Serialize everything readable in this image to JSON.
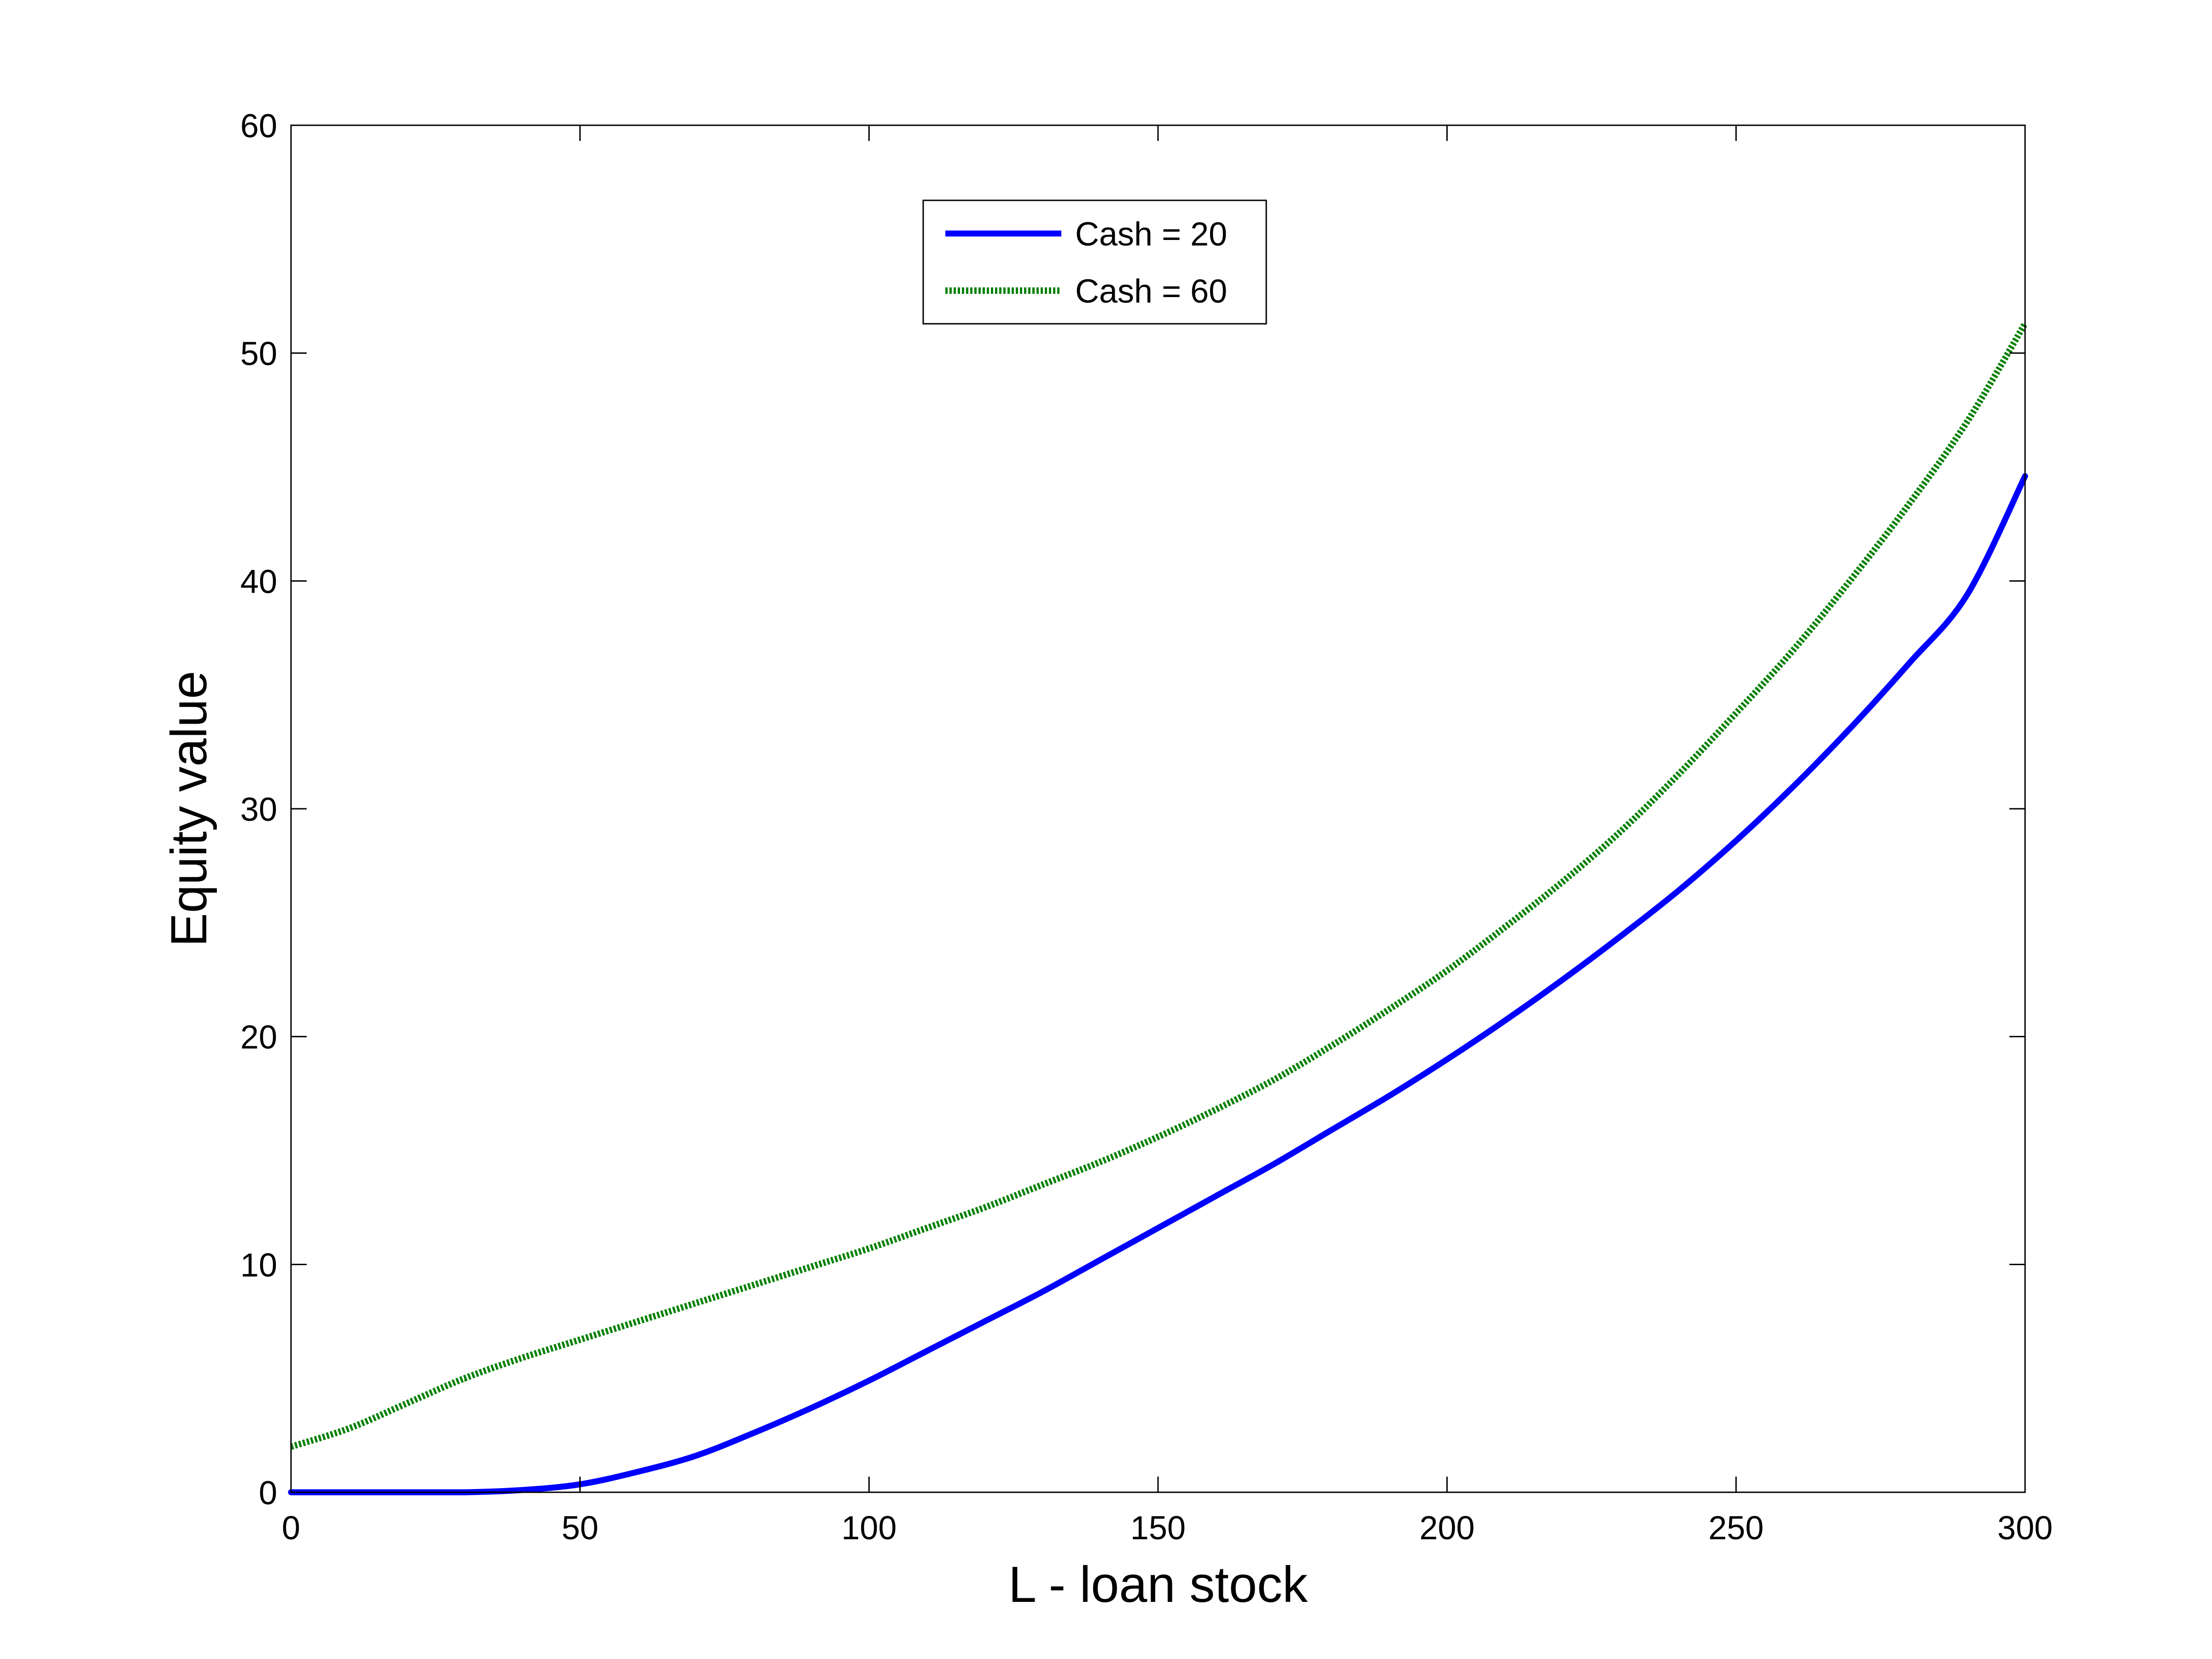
{
  "chart_data": {
    "type": "line",
    "title": "",
    "xlabel": "L - loan stock",
    "ylabel": "Equity value",
    "xlim": [
      0,
      300
    ],
    "ylim": [
      0,
      60
    ],
    "xticks": [
      0,
      50,
      100,
      150,
      200,
      250,
      300
    ],
    "yticks": [
      0,
      10,
      20,
      30,
      40,
      50,
      60
    ],
    "grid": false,
    "legend_position": "top-center",
    "series": [
      {
        "name": "Cash = 20",
        "color": "#0000ff",
        "style": "solid",
        "x": [
          0,
          10,
          20,
          30,
          40,
          50,
          60,
          70,
          80,
          90,
          100,
          110,
          120,
          130,
          140,
          150,
          160,
          170,
          180,
          190,
          200,
          210,
          220,
          230,
          240,
          250,
          260,
          270,
          280,
          290,
          300
        ],
        "y": [
          0,
          0,
          0,
          0,
          0.1,
          0.35,
          0.9,
          1.6,
          2.6,
          3.7,
          4.9,
          6.2,
          7.5,
          8.8,
          10.2,
          11.6,
          13.0,
          14.4,
          15.9,
          17.4,
          19.0,
          20.7,
          22.5,
          24.4,
          26.4,
          28.6,
          31.0,
          33.6,
          36.4,
          39.4,
          44.6
        ]
      },
      {
        "name": "Cash = 60",
        "color": "#008000",
        "style": "dotted",
        "x": [
          0,
          10,
          20,
          30,
          40,
          50,
          60,
          70,
          80,
          90,
          100,
          110,
          120,
          130,
          140,
          150,
          160,
          170,
          180,
          190,
          200,
          210,
          220,
          230,
          240,
          250,
          260,
          270,
          280,
          290,
          300
        ],
        "y": [
          2.0,
          2.8,
          3.9,
          5.0,
          5.9,
          6.7,
          7.5,
          8.3,
          9.1,
          9.9,
          10.7,
          11.6,
          12.5,
          13.5,
          14.5,
          15.6,
          16.8,
          18.1,
          19.6,
          21.2,
          22.9,
          24.8,
          26.8,
          29.0,
          31.5,
          34.2,
          37.0,
          40.1,
          43.4,
          47.0,
          51.3
        ]
      }
    ]
  }
}
